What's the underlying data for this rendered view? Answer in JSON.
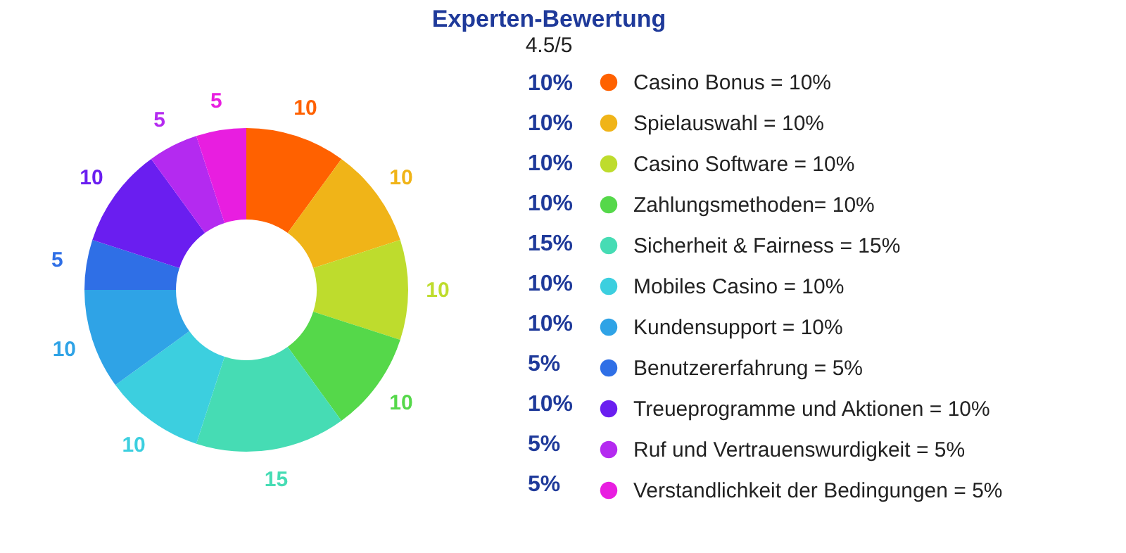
{
  "chart_data": {
    "type": "donut",
    "title": "Experten-Bewertung",
    "annotations": [
      "4.5/5",
      "10%",
      "10%",
      "10%",
      "10%",
      "15%",
      "10%",
      "10%",
      "5%",
      "10%",
      "5%",
      "5%"
    ],
    "categories": [
      "Casino Bonus = 10%",
      "Spielauswahl = 10%",
      "Casino Software = 10%",
      "Zahlungsmethoden= 10%",
      "Sicherheit & Fairness = 15%",
      "Mobiles Casino = 10%",
      "Kundensupport = 10%",
      "Benutzererfahrung = 5%",
      "Treueprogramme und Aktionen = 10%",
      "Ruf und Vertrauenswurdigkeit = 5%",
      "Verstandlichkeit der Bedingungen = 5%"
    ],
    "values": [
      10,
      10,
      10,
      10,
      15,
      10,
      10,
      5,
      10,
      5,
      5
    ],
    "colors": [
      "#ff6100",
      "#f0b418",
      "#bedc2d",
      "#55d84a",
      "#46dcb4",
      "#3ccfdf",
      "#2fa3e6",
      "#2f6fe6",
      "#6a1ef0",
      "#b42af0",
      "#e81ee0"
    ],
    "data_labels": true,
    "legend": "right"
  }
}
